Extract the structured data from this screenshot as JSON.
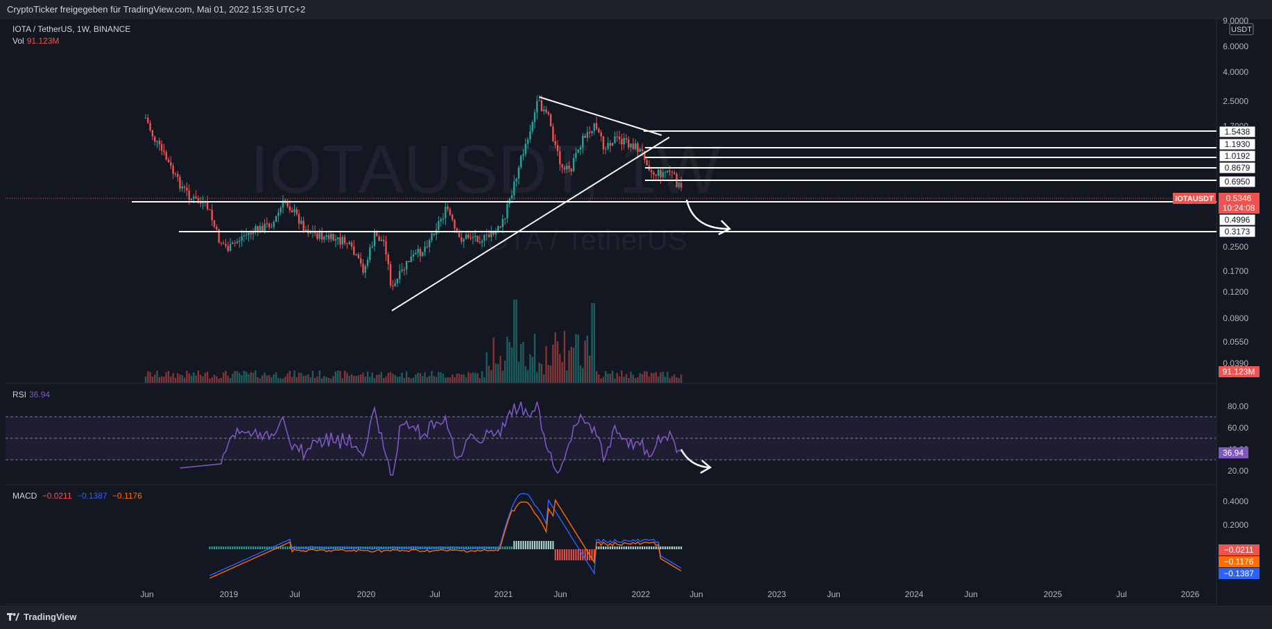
{
  "header": {
    "title": "CryptoTicker freigegeben für TradingView.com, Mai 01, 2022 15:35 UTC+2"
  },
  "legend": {
    "symbol": "IOTA / TetherUS, 1W, BINANCE",
    "vol_label": "Vol",
    "vol_value": "91.123M",
    "rsi_label": "RSI",
    "rsi_value": "36.94",
    "macd_label": "MACD",
    "macd_values": [
      "−0.0211",
      "−0.1387",
      "−0.1176"
    ]
  },
  "watermark": {
    "ticker": "IOTAUSDT, 1W",
    "name": "IOTA / TetherUS"
  },
  "price_axis": {
    "currency": "USDT",
    "ticks": [
      "9.0000",
      "6.0000",
      "4.0000",
      "2.5000",
      "1.7000",
      "0.2500",
      "0.1700",
      "0.1200",
      "0.0800",
      "0.0550",
      "0.0390"
    ],
    "rsi_ticks": [
      "80.00",
      "60.00",
      "40.00",
      "20.00"
    ],
    "macd_ticks": [
      "0.4000",
      "0.2000"
    ]
  },
  "time_axis": {
    "labels": [
      "Jun",
      "2019",
      "Jul",
      "2020",
      "Jul",
      "2021",
      "Jun",
      "2022",
      "Jun",
      "2023",
      "Jun",
      "2024",
      "Jun",
      "2025",
      "Jul",
      "2026"
    ]
  },
  "badges": {
    "symbol_tag": "IOTAUSDT",
    "last_price": "0.5346",
    "countdown": "10:24:08",
    "volume": "91.123M",
    "rsi": "36.94",
    "macd_line": "−0.1387",
    "macd_signal": "−0.1176",
    "macd_hist": "−0.0211"
  },
  "colors": {
    "background": "#131722",
    "up": "#26a69a",
    "down": "#ef5350",
    "rsi": "#7e57c2",
    "macd": "#2962ff",
    "signal": "#ff6d00"
  },
  "footer": {
    "brand": "TradingView"
  },
  "chart_data": {
    "type": "candlestick",
    "symbol": "IOTAUSDT",
    "interval": "1W",
    "exchange": "BINANCE",
    "price_scale": "log",
    "last_price": 0.5346,
    "levels": [
      1.5438,
      1.193,
      1.0192,
      0.8679,
      0.695,
      0.4996,
      0.3173
    ],
    "trendlines": {
      "descending_from": 2.6,
      "ascending_from": 0.09
    },
    "indicators": {
      "volume_last": "91.123M",
      "rsi_last": 36.94,
      "macd": {
        "histogram": -0.0211,
        "macd": -0.1387,
        "signal": -0.1176
      }
    }
  }
}
